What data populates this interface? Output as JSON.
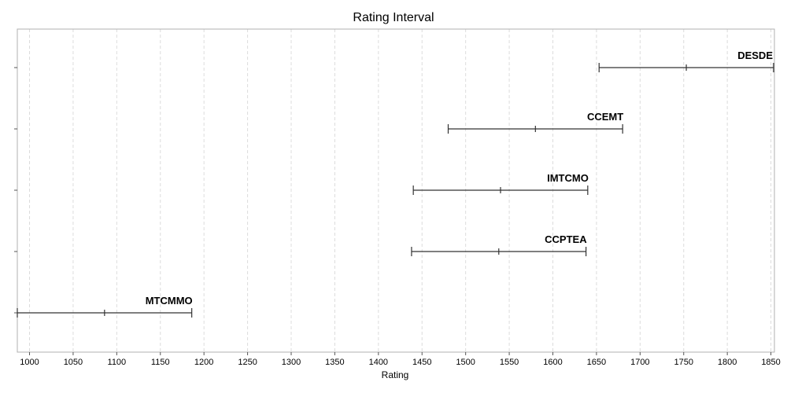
{
  "chart_data": {
    "type": "interval",
    "title": "Rating Interval",
    "xlabel": "Rating",
    "xlim": [
      986,
      1854
    ],
    "xticks": [
      1000,
      1050,
      1100,
      1150,
      1200,
      1250,
      1300,
      1350,
      1400,
      1450,
      1500,
      1550,
      1600,
      1650,
      1700,
      1750,
      1800,
      1850
    ],
    "grid": true,
    "series": [
      {
        "label": "DESDE",
        "low": 1653,
        "mid": 1753,
        "high": 1853
      },
      {
        "label": "CCEMT",
        "low": 1480,
        "mid": 1580,
        "high": 1680
      },
      {
        "label": "IMTCMO",
        "low": 1440,
        "mid": 1540,
        "high": 1640
      },
      {
        "label": "CCPTEA",
        "low": 1438,
        "mid": 1538,
        "high": 1638
      },
      {
        "label": "MTCMMO",
        "low": 986,
        "mid": 1086,
        "high": 1186
      }
    ]
  }
}
